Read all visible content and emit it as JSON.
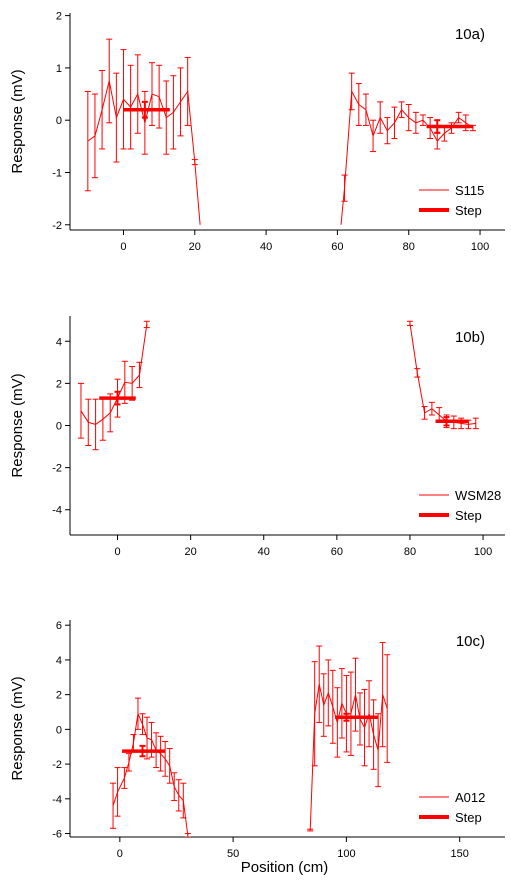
{
  "chart_data": [
    {
      "type": "line",
      "panel_label": "10a)",
      "xlim": [
        -15,
        107
      ],
      "ylim": [
        -2.1,
        2.05
      ],
      "xticks": [
        0,
        20,
        40,
        60,
        80,
        100
      ],
      "yticks": [
        -2,
        -1,
        0,
        1,
        2
      ],
      "xtick_labels": [
        "0",
        "20",
        "40",
        "60",
        "80",
        "100"
      ],
      "ytick_labels": [
        "-2",
        "-1",
        "0",
        "1",
        "2"
      ],
      "ylabel": "Response  (mV)",
      "xlabel": "",
      "color": "#ff0000",
      "legend_position": "bottom-right",
      "series": [
        {
          "name": "S115",
          "segments": [
            [
              {
                "x": -10,
                "y": -0.4,
                "err": 0.95
              },
              {
                "x": -8,
                "y": -0.3,
                "err": 0.8
              },
              {
                "x": -6,
                "y": 0.2,
                "err": 0.75
              },
              {
                "x": -4,
                "y": 0.75,
                "err": 0.8
              },
              {
                "x": -2,
                "y": 0.05,
                "err": 0.85
              },
              {
                "x": 0,
                "y": 0.4,
                "err": 0.95
              },
              {
                "x": 2,
                "y": 0.25,
                "err": 0.8
              },
              {
                "x": 4,
                "y": 0.5,
                "err": 0.75
              },
              {
                "x": 6,
                "y": -0.05,
                "err": 0.6
              },
              {
                "x": 8,
                "y": 0.5,
                "err": 0.6
              },
              {
                "x": 10,
                "y": 0.45,
                "err": 0.6
              },
              {
                "x": 12,
                "y": 0.05,
                "err": 0.7
              },
              {
                "x": 14,
                "y": 0.15,
                "err": 0.7
              },
              {
                "x": 16,
                "y": 0.35,
                "err": 0.65
              },
              {
                "x": 18,
                "y": 0.55,
                "err": 0.65
              },
              {
                "x": 20,
                "y": -0.8,
                "err": 0.05
              },
              {
                "x": 21.5,
                "y": -2.0,
                "err": 0
              }
            ],
            [
              {
                "x": 61,
                "y": -2.0,
                "err": 0
              },
              {
                "x": 62,
                "y": -1.3,
                "err": 0.25
              },
              {
                "x": 64,
                "y": 0.55,
                "err": 0.35
              },
              {
                "x": 66,
                "y": 0.3,
                "err": 0.4
              },
              {
                "x": 68,
                "y": 0.2,
                "err": 0.3
              },
              {
                "x": 70,
                "y": -0.3,
                "err": 0.3
              },
              {
                "x": 72,
                "y": 0.05,
                "err": 0.3
              },
              {
                "x": 74,
                "y": -0.2,
                "err": 0.25
              },
              {
                "x": 76,
                "y": -0.05,
                "err": 0.3
              },
              {
                "x": 78,
                "y": 0.2,
                "err": 0.15
              },
              {
                "x": 80,
                "y": 0.05,
                "err": 0.25
              },
              {
                "x": 82,
                "y": -0.05,
                "err": 0.2
              },
              {
                "x": 84,
                "y": 0.0,
                "err": 0.1
              },
              {
                "x": 86,
                "y": -0.15,
                "err": 0.2
              },
              {
                "x": 88,
                "y": -0.4,
                "err": 0.15
              },
              {
                "x": 90,
                "y": -0.25,
                "err": 0.15
              },
              {
                "x": 92,
                "y": -0.15,
                "err": 0.1
              },
              {
                "x": 94,
                "y": 0.05,
                "err": 0.1
              },
              {
                "x": 96,
                "y": -0.05,
                "err": 0.15
              },
              {
                "x": 98,
                "y": -0.15,
                "err": 0.05
              }
            ]
          ]
        },
        {
          "name": "Step",
          "steps": [
            {
              "x0": 0,
              "x1": 13,
              "y": 0.2,
              "cx": 6,
              "err": 0.15
            },
            {
              "x0": 85,
              "x1": 98,
              "y": -0.12,
              "cx": 88,
              "err": 0.12
            }
          ]
        }
      ]
    },
    {
      "type": "line",
      "panel_label": "10b)",
      "xlim": [
        -13,
        106
      ],
      "ylim": [
        -5.2,
        5.2
      ],
      "xticks": [
        0,
        20,
        40,
        60,
        80,
        100
      ],
      "yticks": [
        -4,
        -2,
        0,
        2,
        4
      ],
      "xtick_labels": [
        "0",
        "20",
        "40",
        "60",
        "80",
        "100"
      ],
      "ytick_labels": [
        "-4",
        "-2",
        "0",
        "2",
        "4"
      ],
      "ylabel": "Response  (mV)",
      "xlabel": "",
      "color": "#ff0000",
      "legend_position": "bottom-right",
      "series": [
        {
          "name": "WSM28",
          "segments": [
            [
              {
                "x": -10,
                "y": 0.7,
                "err": 1.3
              },
              {
                "x": -8,
                "y": 0.15,
                "err": 1.1
              },
              {
                "x": -6,
                "y": 0.05,
                "err": 1.2
              },
              {
                "x": -4,
                "y": 0.3,
                "err": 1.0
              },
              {
                "x": -2,
                "y": 0.6,
                "err": 0.9
              },
              {
                "x": 0,
                "y": 1.3,
                "err": 0.9
              },
              {
                "x": 2,
                "y": 2.05,
                "err": 1.0
              },
              {
                "x": 4,
                "y": 2.0,
                "err": 0.8
              },
              {
                "x": 6,
                "y": 2.4,
                "err": 0.6
              },
              {
                "x": 8,
                "y": 4.8,
                "err": 0.15
              }
            ],
            [
              {
                "x": 80,
                "y": 4.85,
                "err": 0.1
              },
              {
                "x": 82,
                "y": 2.5,
                "err": 0.2
              },
              {
                "x": 84,
                "y": 0.6,
                "err": 0.3
              },
              {
                "x": 86,
                "y": 0.8,
                "err": 0.3
              },
              {
                "x": 88,
                "y": 0.5,
                "err": 0.35
              },
              {
                "x": 90,
                "y": 0.2,
                "err": 0.3
              },
              {
                "x": 92,
                "y": 0.15,
                "err": 0.3
              },
              {
                "x": 94,
                "y": 0.1,
                "err": 0.25
              },
              {
                "x": 96,
                "y": 0.05,
                "err": 0.2
              },
              {
                "x": 98,
                "y": 0.1,
                "err": 0.25
              }
            ]
          ]
        },
        {
          "name": "Step",
          "steps": [
            {
              "x0": -5,
              "x1": 5,
              "y": 1.3,
              "cx": 0,
              "err": 0.3
            },
            {
              "x0": 87,
              "x1": 96,
              "y": 0.2,
              "cx": 90,
              "err": 0.2
            }
          ]
        }
      ]
    },
    {
      "type": "line",
      "panel_label": "10c)",
      "xlim": [
        -22,
        170
      ],
      "ylim": [
        -6.2,
        6.3
      ],
      "xticks": [
        0,
        50,
        100,
        150
      ],
      "yticks": [
        -6,
        -4,
        -2,
        0,
        2,
        4,
        6
      ],
      "xtick_labels": [
        "0",
        "50",
        "100",
        "150"
      ],
      "ytick_labels": [
        "-6",
        "-4",
        "-2",
        "0",
        "2",
        "4",
        "6"
      ],
      "ylabel": "Response  (mV)",
      "xlabel": "Position  (cm)",
      "color": "#ff0000",
      "legend_position": "bottom-right",
      "series": [
        {
          "name": "A012",
          "segments": [
            [
              {
                "x": -3,
                "y": -4.4,
                "err": 1.3
              },
              {
                "x": -1,
                "y": -3.6,
                "err": 1.4
              },
              {
                "x": 2,
                "y": -2.8,
                "err": 0.6
              },
              {
                "x": 4,
                "y": -1.9,
                "err": 0.5
              },
              {
                "x": 6,
                "y": -0.8,
                "err": 0.5
              },
              {
                "x": 8,
                "y": 0.9,
                "err": 0.9
              },
              {
                "x": 10,
                "y": 0.3,
                "err": 0.6
              },
              {
                "x": 12,
                "y": -0.5,
                "err": 1.2
              },
              {
                "x": 14,
                "y": -0.6,
                "err": 1.0
              },
              {
                "x": 16,
                "y": -1.2,
                "err": 1.0
              },
              {
                "x": 18,
                "y": -1.4,
                "err": 1.0
              },
              {
                "x": 20,
                "y": -1.7,
                "err": 1.0
              },
              {
                "x": 22,
                "y": -2.1,
                "err": 1.0
              },
              {
                "x": 24,
                "y": -3.3,
                "err": 0.8
              },
              {
                "x": 26,
                "y": -3.8,
                "err": 0.9
              },
              {
                "x": 28,
                "y": -4.1,
                "err": 1.0
              },
              {
                "x": 30,
                "y": -6.1,
                "err": 0.1
              }
            ],
            [
              {
                "x": 84,
                "y": -5.8,
                "err": 0.05
              },
              {
                "x": 86,
                "y": 0.9,
                "err": 3.0
              },
              {
                "x": 88,
                "y": 2.6,
                "err": 2.2
              },
              {
                "x": 90,
                "y": 1.4,
                "err": 1.8
              },
              {
                "x": 92,
                "y": 2.1,
                "err": 1.9
              },
              {
                "x": 94,
                "y": 1.3,
                "err": 2.1
              },
              {
                "x": 96,
                "y": 0.4,
                "err": 2.0
              },
              {
                "x": 98,
                "y": 1.5,
                "err": 2.0
              },
              {
                "x": 100,
                "y": 0.9,
                "err": 2.2
              },
              {
                "x": 102,
                "y": 0.9,
                "err": 2.4
              },
              {
                "x": 104,
                "y": 2.0,
                "err": 2.1
              },
              {
                "x": 106,
                "y": 0.6,
                "err": 1.5
              },
              {
                "x": 108,
                "y": 0.1,
                "err": 2.2
              },
              {
                "x": 110,
                "y": 0.9,
                "err": 1.9
              },
              {
                "x": 112,
                "y": -0.3,
                "err": 2.0
              },
              {
                "x": 114,
                "y": -1.2,
                "err": 2.1
              },
              {
                "x": 116,
                "y": 2.0,
                "err": 3.0
              },
              {
                "x": 118,
                "y": 1.2,
                "err": 3.1
              }
            ]
          ]
        },
        {
          "name": "Step",
          "steps": [
            {
              "x0": 1,
              "x1": 20,
              "y": -1.25,
              "cx": 10,
              "err": 0.3
            },
            {
              "x0": 95,
              "x1": 114,
              "y": 0.7,
              "cx": 100,
              "err": 0.2
            }
          ]
        }
      ]
    }
  ]
}
